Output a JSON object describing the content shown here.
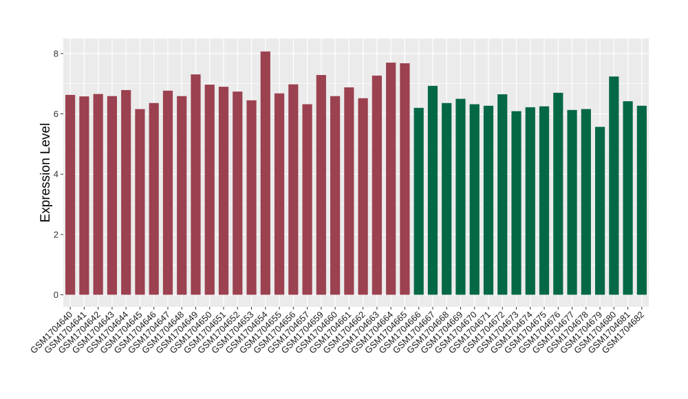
{
  "chart_data": {
    "type": "bar",
    "ylabel": "Expression Level",
    "xlabel": "",
    "ylim": [
      -0.4,
      8.5
    ],
    "yticks": [
      0,
      2,
      4,
      6,
      8
    ],
    "grid": true,
    "categories": [
      "GSM1704640",
      "GSM1704641",
      "GSM1704642",
      "GSM1704643",
      "GSM1704644",
      "GSM1704645",
      "GSM1704646",
      "GSM1704647",
      "GSM1704648",
      "GSM1704649",
      "GSM1704650",
      "GSM1704651",
      "GSM1704652",
      "GSM1704653",
      "GSM1704654",
      "GSM1704655",
      "GSM1704656",
      "GSM1704657",
      "GSM1704659",
      "GSM1704660",
      "GSM1704661",
      "GSM1704662",
      "GSM1704663",
      "GSM1704664",
      "GSM1704665",
      "GSM1704666",
      "GSM1704667",
      "GSM1704668",
      "GSM1704669",
      "GSM1704670",
      "GSM1704671",
      "GSM1704672",
      "GSM1704673",
      "GSM1704674",
      "GSM1704675",
      "GSM1704676",
      "GSM1704677",
      "GSM1704678",
      "GSM1704679",
      "GSM1704680",
      "GSM1704681",
      "GSM1704682"
    ],
    "values": [
      6.63,
      6.58,
      6.66,
      6.59,
      6.79,
      6.16,
      6.36,
      6.77,
      6.59,
      7.31,
      6.97,
      6.9,
      6.74,
      6.45,
      8.07,
      6.68,
      6.98,
      6.32,
      7.29,
      6.59,
      6.88,
      6.52,
      7.27,
      7.7,
      7.68,
      6.2,
      6.93,
      6.36,
      6.5,
      6.32,
      6.27,
      6.65,
      6.09,
      6.22,
      6.25,
      6.7,
      6.13,
      6.16,
      5.57,
      7.24,
      6.42,
      6.27
    ],
    "group_sizes": [
      25,
      17
    ],
    "colors": [
      "#9b4150",
      "#046845"
    ],
    "background": "#ebebeb",
    "gridline_color": "#ffffff"
  }
}
